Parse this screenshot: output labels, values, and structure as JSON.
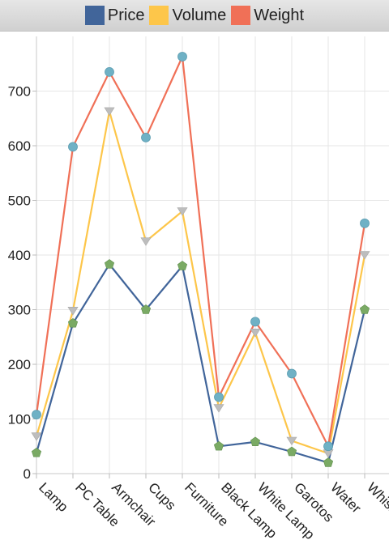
{
  "chart_data": {
    "type": "line",
    "title": "",
    "xlabel": "",
    "ylabel": "",
    "categories": [
      "Lamp",
      "PC Table",
      "Armchair",
      "Cups",
      "Furniture",
      "Black Lamp",
      "White Lamp",
      "Garotos",
      "Water",
      "Whisky"
    ],
    "ylim": [
      0,
      800
    ],
    "yticks": [
      0,
      100,
      200,
      300,
      400,
      500,
      600,
      700
    ],
    "grid": true,
    "legend_position": "top",
    "series": [
      {
        "name": "Price",
        "color": "#41659a",
        "marker": "pentagon",
        "marker_color": "#7aaa64",
        "values": [
          38,
          275,
          383,
          300,
          380,
          50,
          58,
          40,
          20,
          300
        ]
      },
      {
        "name": "Volume",
        "color": "#fdc64a",
        "marker": "triangle-down",
        "marker_color": "#bdbdbd",
        "values": [
          68,
          298,
          663,
          425,
          480,
          120,
          258,
          60,
          37,
          400
        ]
      },
      {
        "name": "Weight",
        "color": "#f07057",
        "marker": "circle",
        "marker_color": "#6fb1c5",
        "values": [
          108,
          598,
          735,
          615,
          763,
          140,
          278,
          183,
          50,
          458
        ]
      }
    ]
  }
}
